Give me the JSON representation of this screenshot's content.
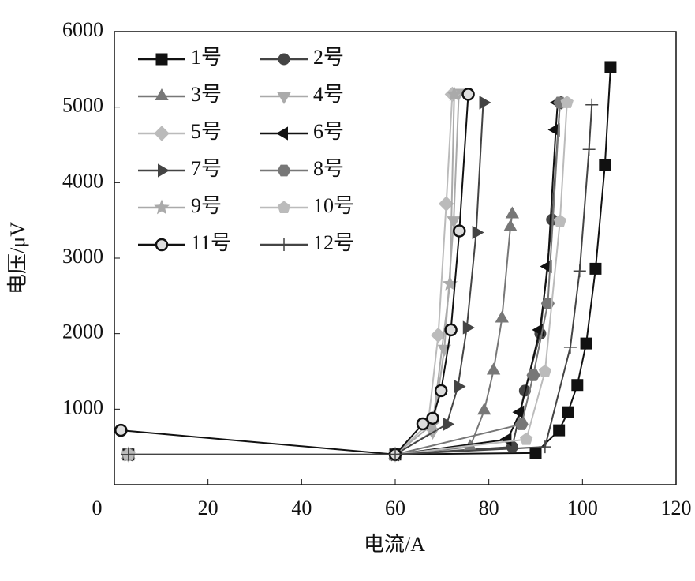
{
  "chart_data": {
    "type": "line",
    "xlabel": "电流/A",
    "ylabel": "电压/μV",
    "xlim": [
      0,
      120
    ],
    "xticks": [
      0,
      20,
      40,
      60,
      80,
      100,
      120
    ],
    "ylim": [
      0,
      6000
    ],
    "yticks": [
      1000,
      2000,
      3000,
      4000,
      5000,
      6000
    ],
    "legend": "upper left",
    "series": [
      {
        "name": "1号",
        "color": "#111111",
        "marker": "square",
        "x": [
          3,
          60,
          90,
          95,
          96.9,
          98.9,
          100.8,
          102.8,
          104.8,
          106
        ],
        "values": [
          400,
          400,
          420,
          720,
          960,
          1320,
          1870,
          2860,
          4230,
          5530
        ]
      },
      {
        "name": "2号",
        "color": "#444444",
        "marker": "circle",
        "x": [
          3,
          60,
          85,
          87.7,
          91,
          93.5,
          95.2
        ],
        "values": [
          400,
          400,
          500,
          1245,
          2000,
          3510,
          5060
        ]
      },
      {
        "name": "3号",
        "color": "#777777",
        "marker": "triangle-up",
        "x": [
          3,
          60,
          76,
          79,
          81,
          82.8,
          84.6,
          85
        ],
        "values": [
          400,
          400,
          500,
          980,
          1510,
          2200,
          3410,
          3580
        ]
      },
      {
        "name": "4号",
        "color": "#aaaaaa",
        "marker": "triangle-down",
        "x": [
          3,
          60,
          68,
          70.5,
          72.5,
          73.6
        ],
        "values": [
          400,
          400,
          700,
          1800,
          3500,
          5190
        ]
      },
      {
        "name": "5号",
        "color": "#bbbbbb",
        "marker": "diamond",
        "x": [
          3,
          60,
          67,
          69.2,
          70.9,
          72.2
        ],
        "values": [
          400,
          400,
          800,
          1980,
          3720,
          5170
        ]
      },
      {
        "name": "6号",
        "color": "#111111",
        "marker": "triangle-left",
        "x": [
          3,
          60,
          84,
          86.7,
          90.9,
          92.6,
          94.3,
          94.7
        ],
        "values": [
          400,
          400,
          600,
          960,
          2050,
          2890,
          4700,
          5060
        ]
      },
      {
        "name": "7号",
        "color": "#444444",
        "marker": "triangle-right",
        "x": [
          3,
          60,
          71,
          73.4,
          75.3,
          77.3,
          78.8
        ],
        "values": [
          400,
          400,
          800,
          1300,
          2080,
          3340,
          5060
        ]
      },
      {
        "name": "8号",
        "color": "#777777",
        "marker": "hexagon",
        "x": [
          3,
          60,
          87,
          89.5,
          92.6,
          95.2
        ],
        "values": [
          400,
          400,
          800,
          1450,
          2400,
          5060
        ]
      },
      {
        "name": "9号",
        "color": "#aaaaaa",
        "marker": "star",
        "x": [
          3,
          60,
          68,
          71.7,
          72.6
        ],
        "values": [
          400,
          400,
          800,
          2660,
          5170
        ]
      },
      {
        "name": "10号",
        "color": "#bbbbbb",
        "marker": "pentagon",
        "x": [
          3,
          60,
          88,
          92,
          95.2,
          96.7
        ],
        "values": [
          400,
          400,
          600,
          1500,
          3490,
          5060
        ]
      },
      {
        "name": "11号",
        "color": "#111111",
        "marker": "sphere",
        "x": [
          1.4,
          60,
          65.9,
          68,
          69.8,
          71.9,
          73.7,
          75.6
        ],
        "values": [
          720,
          400,
          805,
          880,
          1245,
          2050,
          3360,
          5170
        ]
      },
      {
        "name": "12号",
        "color": "#444444",
        "marker": "plus",
        "x": [
          3,
          60,
          92,
          97.4,
          99.4,
          101.4,
          102
        ],
        "values": [
          400,
          400,
          500,
          1820,
          2830,
          4440,
          5030
        ]
      }
    ]
  }
}
